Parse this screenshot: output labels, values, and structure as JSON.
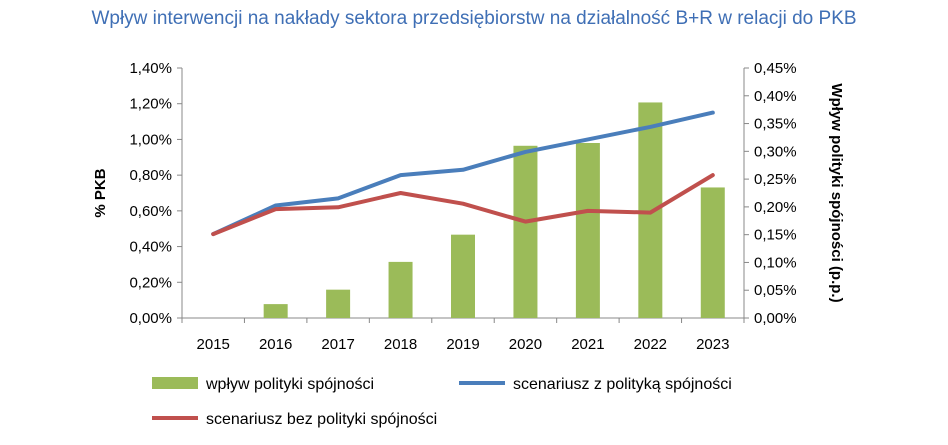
{
  "title": "Wpływ interwencji na nakłady sektora przedsiębiorstw na działalność B+R w relacji do PKB",
  "chart_data": {
    "type": "bar",
    "categories": [
      "2015",
      "2016",
      "2017",
      "2018",
      "2019",
      "2020",
      "2021",
      "2022",
      "2023"
    ],
    "ylabel_left": "% PKB",
    "ylabel_right": "Wpływ polityki spójności (p.p.)",
    "ylim_left": [
      0,
      1.4
    ],
    "ylim_right": [
      0,
      0.45
    ],
    "yticks_left": [
      "0,00%",
      "0,20%",
      "0,40%",
      "0,60%",
      "0,80%",
      "1,00%",
      "1,20%",
      "1,40%"
    ],
    "yticks_right": [
      "0,00%",
      "0,05%",
      "0,10%",
      "0,15%",
      "0,20%",
      "0,25%",
      "0,30%",
      "0,35%",
      "0,40%",
      "0,45%"
    ],
    "legend_position": "bottom",
    "series": [
      {
        "name": "wpływ polityki spójności",
        "kind": "bar",
        "axis": "right",
        "color": "#9bbb59",
        "values": [
          0,
          0.025,
          0.051,
          0.101,
          0.15,
          0.31,
          0.315,
          0.388,
          0.235
        ]
      },
      {
        "name": "scenariusz z polityką spójności",
        "kind": "line",
        "axis": "left",
        "color": "#4a7ebb",
        "values": [
          0.47,
          0.63,
          0.67,
          0.8,
          0.83,
          0.93,
          1.0,
          1.07,
          1.15
        ]
      },
      {
        "name": "scenariusz bez polityki spójności",
        "kind": "line",
        "axis": "left",
        "color": "#c0504d",
        "values": [
          0.47,
          0.61,
          0.62,
          0.7,
          0.64,
          0.54,
          0.6,
          0.59,
          0.8
        ]
      }
    ]
  }
}
